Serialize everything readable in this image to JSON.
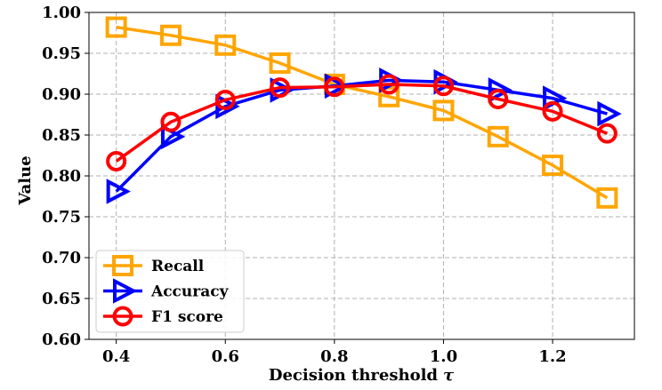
{
  "chart_data": {
    "type": "line",
    "title": "",
    "xlabel": "Decision threshold",
    "xlabel_symbol": "τ",
    "ylabel": "Value",
    "x": [
      0.4,
      0.5,
      0.6,
      0.7,
      0.8,
      0.9,
      1.0,
      1.1,
      1.2,
      1.3
    ],
    "xlim": [
      0.35,
      1.35
    ],
    "ylim": [
      0.6,
      1.0
    ],
    "xticks": [
      "0.4",
      "0.6",
      "0.8",
      "1.0",
      "1.2"
    ],
    "yticks": [
      "0.60",
      "0.65",
      "0.70",
      "0.75",
      "0.80",
      "0.85",
      "0.90",
      "0.95",
      "1.00"
    ],
    "grid": true,
    "legend_position": "lower-left",
    "series": [
      {
        "name": "Recall",
        "color": "#FFA500",
        "marker": "square",
        "values": [
          0.982,
          0.972,
          0.96,
          0.938,
          0.912,
          0.897,
          0.88,
          0.848,
          0.813,
          0.773
        ]
      },
      {
        "name": "Accuracy",
        "color": "#0000FF",
        "marker": "triangle-right",
        "values": [
          0.781,
          0.848,
          0.885,
          0.905,
          0.91,
          0.917,
          0.915,
          0.905,
          0.895,
          0.876
        ]
      },
      {
        "name": "F1 score",
        "color": "#FF0000",
        "marker": "circle",
        "values": [
          0.818,
          0.866,
          0.893,
          0.908,
          0.909,
          0.912,
          0.91,
          0.894,
          0.879,
          0.852
        ]
      }
    ]
  }
}
